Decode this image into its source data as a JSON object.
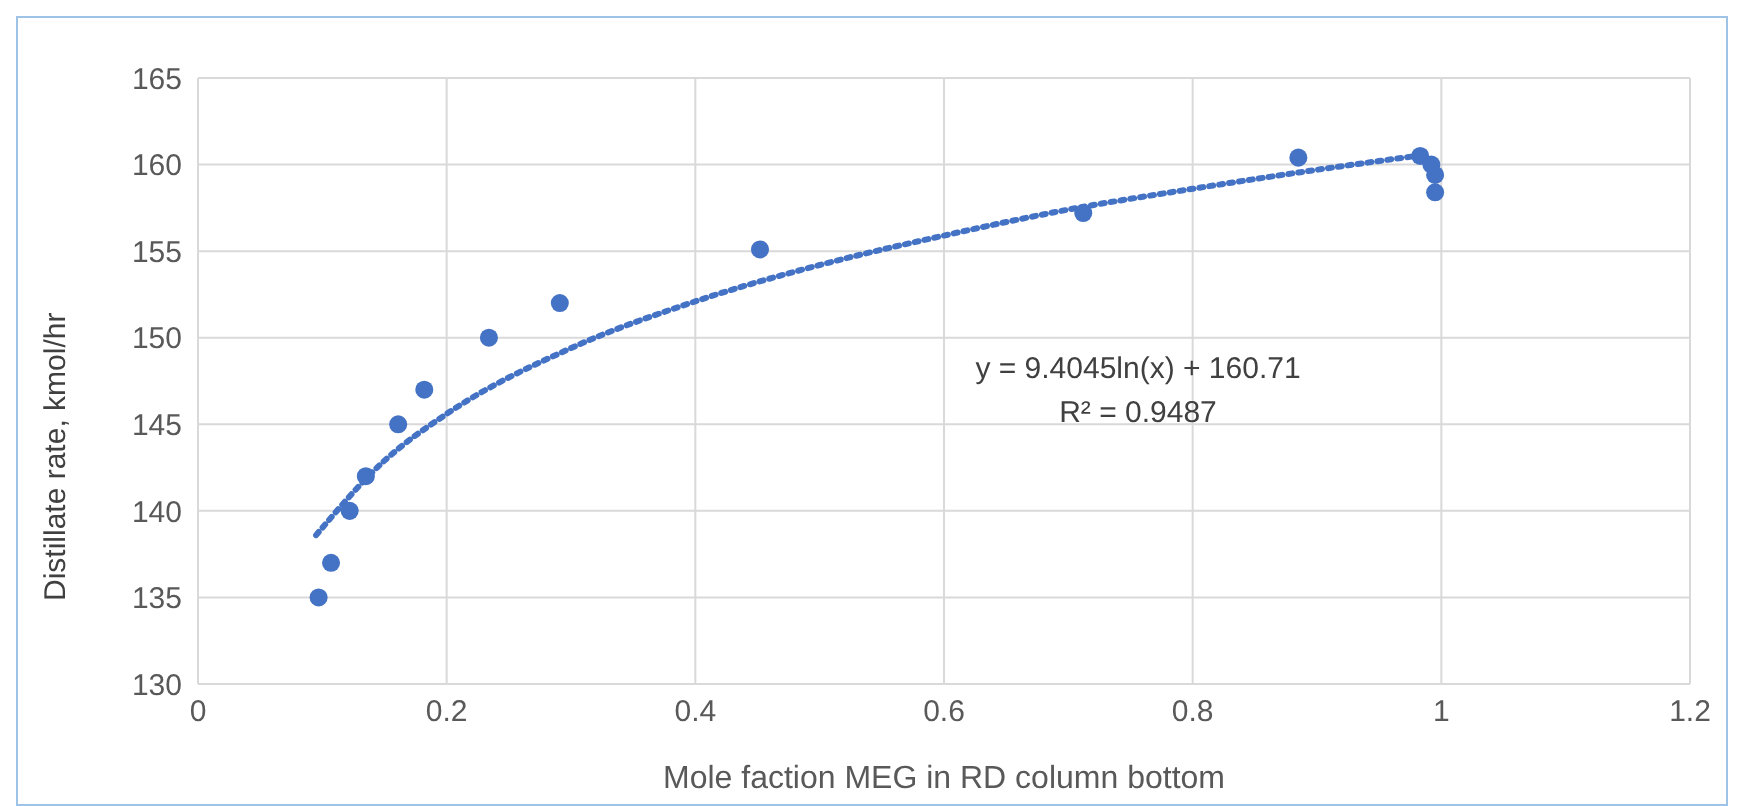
{
  "chart_data": {
    "type": "scatter",
    "xlabel": "Mole faction MEG in RD column bottom",
    "ylabel": "Distillate rate, kmol/hr",
    "xlim": [
      0,
      1.2
    ],
    "xticks": [
      0,
      0.2,
      0.4,
      0.6,
      0.8,
      1,
      1.2
    ],
    "ylim": [
      130,
      165
    ],
    "yticks": [
      130,
      135,
      140,
      145,
      150,
      155,
      160,
      165
    ],
    "grid": true,
    "legend": false,
    "series": [
      {
        "marker": "circle",
        "color": "#4472c4",
        "x": [
          0.097,
          0.107,
          0.122,
          0.135,
          0.161,
          0.182,
          0.234,
          0.291,
          0.452,
          0.712,
          0.885,
          0.983,
          0.992,
          0.995,
          0.995
        ],
        "values": [
          135,
          137,
          140,
          142,
          145,
          147,
          150,
          152,
          155.1,
          157.2,
          160.4,
          160.5,
          160,
          159.4,
          158.4
        ]
      },
      {
        "type": "line",
        "marker": "none",
        "color": "#4472c4",
        "line_style": "dotted",
        "x": [
          0.095,
          0.15,
          0.2,
          0.3,
          0.4,
          0.5,
          0.6,
          0.7,
          0.8,
          0.9,
          0.98
        ],
        "values": [
          138.6,
          142.9,
          145.6,
          149.4,
          152.1,
          154.2,
          155.9,
          157.4,
          158.6,
          159.7,
          160.5
        ]
      }
    ],
    "annotations": [
      "y = 9.4045ln(x) + 160.71",
      "R² = 0.9487"
    ]
  }
}
